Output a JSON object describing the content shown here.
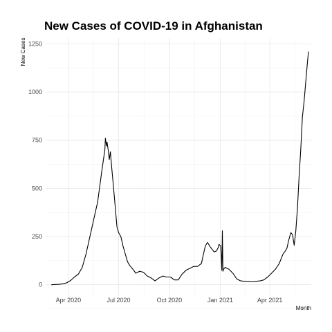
{
  "chart_data": {
    "type": "line",
    "title": "New Cases of COVID-19 in Afghanistan",
    "xlabel": "Month",
    "ylabel": "New Cases",
    "x_ticks": [
      {
        "label": "Apr 2020",
        "date": "2020-04-01"
      },
      {
        "label": "Jul 2020",
        "date": "2020-07-01"
      },
      {
        "label": "Oct 2020",
        "date": "2020-10-01"
      },
      {
        "label": "Jan 2021",
        "date": "2021-01-01"
      },
      {
        "label": "Apr 2021",
        "date": "2021-04-01"
      }
    ],
    "xlim": [
      "2020-02-21",
      "2021-06-15"
    ],
    "y_ticks": [
      0,
      250,
      500,
      750,
      1000,
      1250
    ],
    "ylim": [
      -55,
      1280
    ],
    "grid": true,
    "line_color": "#000000",
    "series": [
      {
        "x": [
          "2020-03-01",
          "2020-03-15",
          "2020-03-22",
          "2020-03-29",
          "2020-04-05",
          "2020-04-12",
          "2020-04-19",
          "2020-04-26",
          "2020-05-03",
          "2020-05-10",
          "2020-05-17",
          "2020-05-24",
          "2020-05-31",
          "2020-06-03",
          "2020-06-06",
          "2020-06-07",
          "2020-06-09",
          "2020-06-10",
          "2020-06-12",
          "2020-06-14",
          "2020-06-16",
          "2020-06-18",
          "2020-06-21",
          "2020-06-25",
          "2020-06-28",
          "2020-07-01",
          "2020-07-05",
          "2020-07-09",
          "2020-07-13",
          "2020-07-17",
          "2020-07-21",
          "2020-07-27",
          "2020-08-01",
          "2020-08-08",
          "2020-08-15",
          "2020-08-22",
          "2020-08-29",
          "2020-09-05",
          "2020-09-12",
          "2020-09-19",
          "2020-09-26",
          "2020-10-03",
          "2020-10-10",
          "2020-10-17",
          "2020-10-24",
          "2020-10-31",
          "2020-11-07",
          "2020-11-14",
          "2020-11-21",
          "2020-11-28",
          "2020-12-01",
          "2020-12-05",
          "2020-12-09",
          "2020-12-13",
          "2020-12-17",
          "2020-12-21",
          "2020-12-25",
          "2020-12-28",
          "2020-12-30",
          "2021-01-02",
          "2021-01-03",
          "2021-01-04",
          "2021-01-05",
          "2021-01-06",
          "2021-01-07",
          "2021-01-10",
          "2021-01-17",
          "2021-01-24",
          "2021-01-31",
          "2021-02-07",
          "2021-02-14",
          "2021-02-21",
          "2021-02-28",
          "2021-03-07",
          "2021-03-14",
          "2021-03-21",
          "2021-03-28",
          "2021-04-04",
          "2021-04-11",
          "2021-04-18",
          "2021-04-25",
          "2021-04-29",
          "2021-05-02",
          "2021-05-05",
          "2021-05-09",
          "2021-05-12",
          "2021-05-15",
          "2021-05-18",
          "2021-05-21",
          "2021-05-24",
          "2021-05-27",
          "2021-05-30",
          "2021-06-02",
          "2021-06-05",
          "2021-06-08",
          "2021-06-10"
        ],
        "values": [
          0,
          2,
          5,
          10,
          22,
          40,
          55,
          90,
          160,
          250,
          340,
          430,
          580,
          640,
          700,
          760,
          720,
          740,
          700,
          650,
          690,
          620,
          530,
          400,
          300,
          270,
          250,
          200,
          160,
          120,
          100,
          80,
          60,
          70,
          65,
          45,
          35,
          20,
          35,
          45,
          40,
          40,
          25,
          25,
          55,
          75,
          85,
          95,
          95,
          110,
          150,
          200,
          220,
          200,
          185,
          170,
          175,
          190,
          210,
          200,
          150,
          75,
          280,
          70,
          80,
          90,
          80,
          60,
          30,
          20,
          18,
          18,
          15,
          18,
          20,
          25,
          40,
          60,
          80,
          110,
          160,
          175,
          190,
          230,
          270,
          260,
          205,
          280,
          400,
          560,
          700,
          870,
          950,
          1050,
          1150,
          1210
        ]
      }
    ]
  }
}
